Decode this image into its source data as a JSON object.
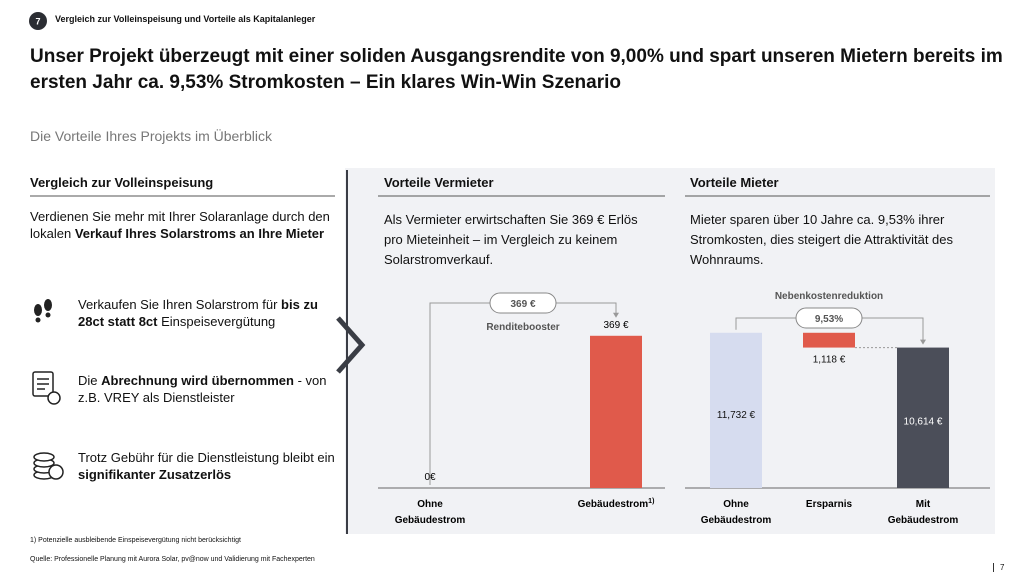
{
  "header": {
    "badge": "7",
    "section": "Vergleich zur Volleinspeisung und Vorteile als Kapitalanleger",
    "title": "Unser Projekt überzeugt mit einer soliden Ausgangsrendite von 9,00% und spart unseren Mietern bereits im ersten Jahr ca. 9,53% Stromkosten – Ein klares Win-Win Szenario",
    "subtitle": "Die Vorteile Ihres Projekts im Überblick"
  },
  "left": {
    "heading": "Vergleich zur Volleinspeisung",
    "intro": [
      {
        "text": "Verdienen Sie mehr mit Ihrer Solaranlage durch den lokalen "
      },
      {
        "text": "Verkauf Ihres Solarstroms an Ihre Mieter",
        "bold": true
      }
    ],
    "items": [
      [
        {
          "text": "Verkaufen Sie Ihren Solarstrom für "
        },
        {
          "text": "bis zu 28ct statt 8ct",
          "bold": true
        },
        {
          "text": " Einspeisevergütung"
        }
      ],
      [
        {
          "text": "Die "
        },
        {
          "text": "Abrechnung wird übernommen",
          "bold": true
        },
        {
          "text": " - von z.B. VREY als Dienstleister"
        }
      ],
      [
        {
          "text": "Trotz Gebühr für die Dienstleistung bleibt ein "
        },
        {
          "text": "signifikanter Zusatzerlös",
          "bold": true
        }
      ]
    ]
  },
  "landlord": {
    "heading": "Vorteile Vermieter",
    "text": "Als Vermieter erwirtschaften Sie 369 € Erlös pro Mieteinheit – im Vergleich zu keinem Solarstromverkauf.",
    "chart": {
      "type": "bar",
      "categories": [
        "Ohne\nGebäudestrom",
        "Gebäudestrom"
      ],
      "category_footnotes": [
        null,
        "1)"
      ],
      "values": [
        0,
        369
      ],
      "value_labels": [
        "0€",
        "369 €"
      ],
      "colors": [
        "#e05a4b",
        "#e05a4b"
      ],
      "ylim": [
        0,
        400
      ],
      "annotation": "369 €",
      "annotation_label": "Renditebooster"
    }
  },
  "tenant": {
    "heading": "Vorteile Mieter",
    "text": "Mieter sparen über 10 Jahre ca. 9,53% ihrer Stromkosten, dies steigert die Attraktivität des Wohnraums.",
    "chart": {
      "type": "waterfall",
      "title": "Nebenkostenreduktion",
      "categories": [
        "Ohne\nGebäudestrom",
        "Ersparnis",
        "Mit\nGebäudestrom"
      ],
      "values": [
        11732,
        1118,
        10614
      ],
      "value_labels": [
        "11,732 €",
        "1,118 €",
        "10,614 €"
      ],
      "steps": [
        "total",
        "decrease",
        "total"
      ],
      "colors": [
        "#d6dcef",
        "#e05a4b",
        "#4b4e59"
      ],
      "ylim": [
        0,
        13000
      ],
      "annotation": "9,53%"
    }
  },
  "footnote": "1) Potenzielle ausbleibende Einspeisevergütung nicht berücksichtigt",
  "source": "Quelle: Professionelle Planung mit Aurora Solar, pv@now und Validierung mit Fachexperten",
  "page": "7"
}
